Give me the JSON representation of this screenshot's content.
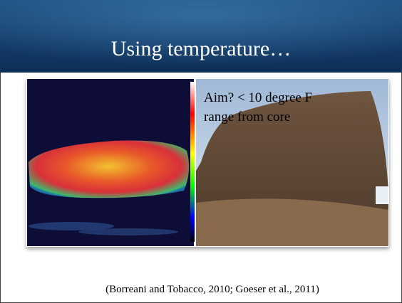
{
  "slide": {
    "title": "Using temperature…",
    "callout": {
      "lines": [
        "Aim? < 10 degree F",
        "range from core"
      ]
    },
    "citation": "(Borreani and Tobacco, 2010; Goeser et al., 2011)"
  }
}
